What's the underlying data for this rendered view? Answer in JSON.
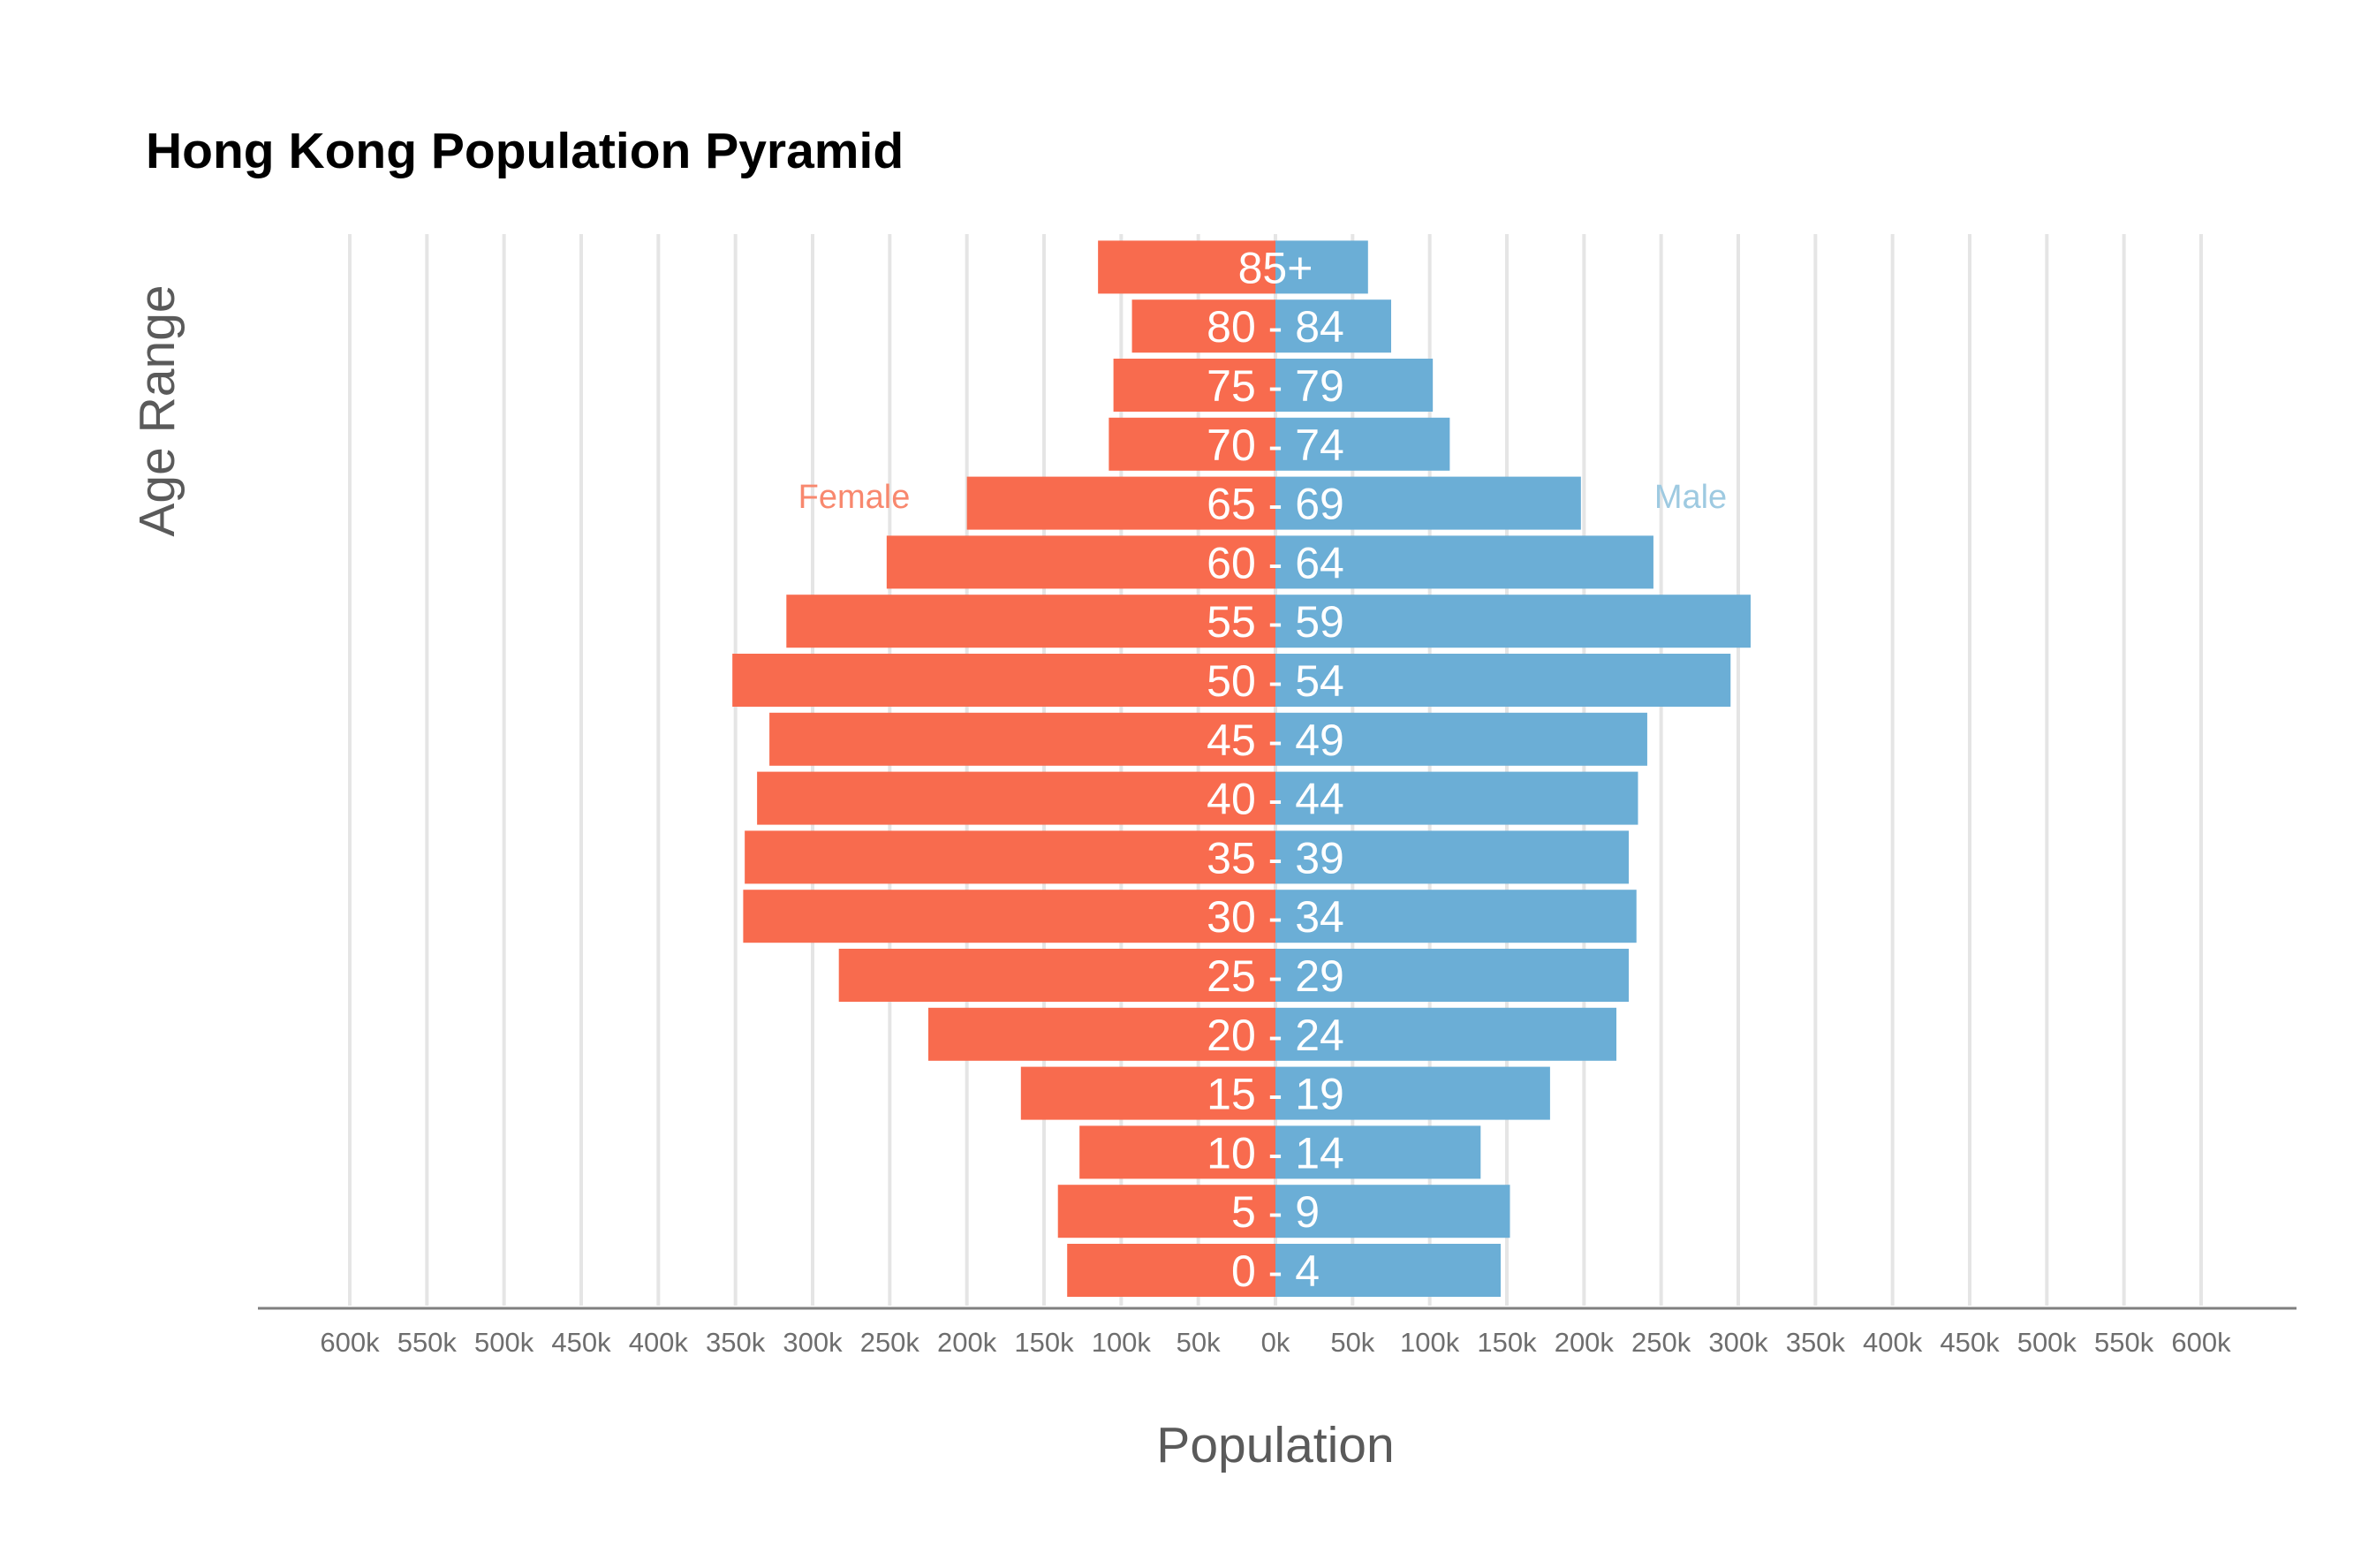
{
  "chart_data": {
    "type": "bar",
    "title": "Hong Kong Population Pyramid",
    "xlabel": "Population",
    "ylabel": "Age Range",
    "categories": [
      "0 - 4",
      "5 - 9",
      "10 - 14",
      "15 - 19",
      "20 - 24",
      "25 - 29",
      "30 - 34",
      "35 - 39",
      "40 - 44",
      "45 - 49",
      "50 - 54",
      "55 - 59",
      "60 - 64",
      "65 - 69",
      "70 - 74",
      "75 - 79",
      "80 - 84",
      "85+"
    ],
    "series": [
      {
        "name": "Female",
        "color": "#f86b4e",
        "values": [
          135000,
          141000,
          127000,
          165000,
          225000,
          283000,
          345000,
          344000,
          336000,
          328000,
          352000,
          317000,
          252000,
          200000,
          108000,
          105000,
          93000,
          115000
        ]
      },
      {
        "name": "Male",
        "color": "#6baed6",
        "values": [
          146000,
          152000,
          133000,
          178000,
          221000,
          229000,
          234000,
          229000,
          235000,
          241000,
          295000,
          308000,
          245000,
          198000,
          113000,
          102000,
          75000,
          60000
        ]
      }
    ],
    "xlim": [
      -600000,
      600000
    ],
    "x_ticks": [
      -600000,
      -550000,
      -500000,
      -450000,
      -400000,
      -350000,
      -300000,
      -250000,
      -200000,
      -150000,
      -100000,
      -50000,
      0,
      50000,
      100000,
      150000,
      200000,
      250000,
      300000,
      350000,
      400000,
      450000,
      500000,
      550000,
      600000
    ],
    "x_tick_labels": [
      "600k",
      "550k",
      "500k",
      "450k",
      "400k",
      "350k",
      "300k",
      "250k",
      "200k",
      "150k",
      "100k",
      "50k",
      "0k",
      "50k",
      "100k",
      "150k",
      "200k",
      "250k",
      "300k",
      "350k",
      "400k",
      "450k",
      "500k",
      "550k",
      "600k"
    ],
    "grid": true,
    "legend": "inline labels",
    "annotations": [
      {
        "text": "Female",
        "color": "#f8886e"
      },
      {
        "text": "Male",
        "color": "#9ecae1"
      }
    ],
    "colors": {
      "grid": "#e5e5e5",
      "axis": "#7f7f7f",
      "bar_label": "#ffffff"
    }
  }
}
